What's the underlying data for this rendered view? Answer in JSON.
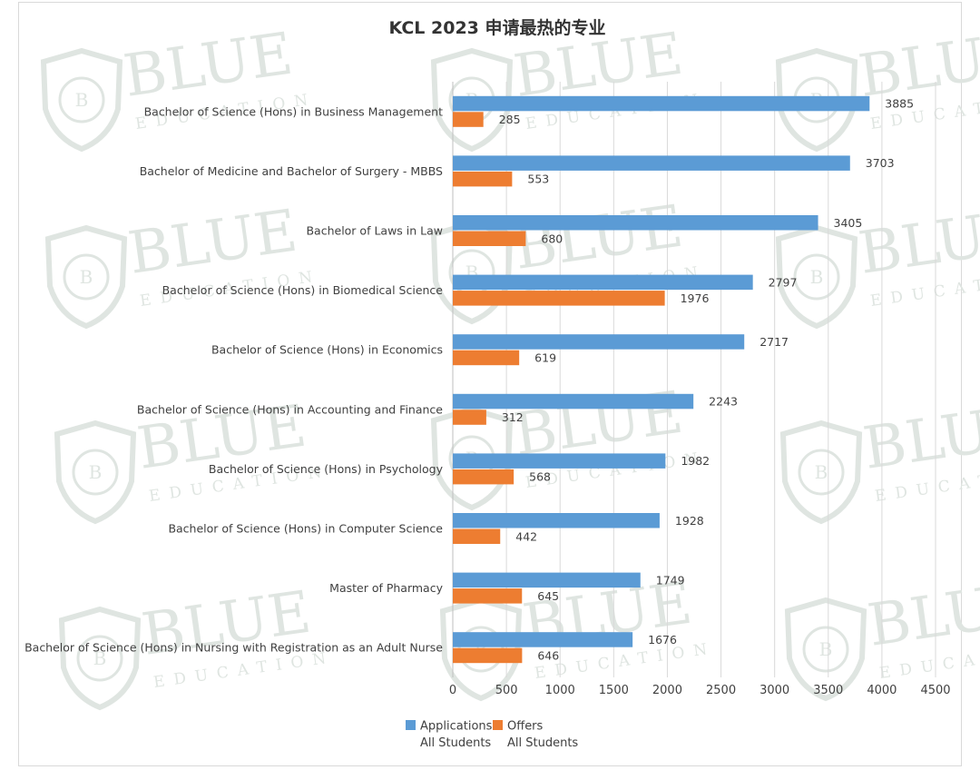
{
  "chart_data": {
    "type": "bar",
    "orientation": "horizontal",
    "title": "KCL 2023 申请最热的专业",
    "categories": [
      "Bachelor of Science (Hons) in Business Management",
      "Bachelor of Medicine and Bachelor of Surgery - MBBS",
      "Bachelor of Laws in Law",
      "Bachelor of Science (Hons) in Biomedical Science",
      "Bachelor of Science (Hons) in Economics",
      "Bachelor of Science (Hons) in Accounting and Finance",
      "Bachelor of Science (Hons) in Psychology",
      "Bachelor of Science (Hons) in Computer Science",
      "Master of Pharmacy",
      "Bachelor of Science (Hons) in Nursing with Registration as an Adult Nurse"
    ],
    "series": [
      {
        "name": "Applications",
        "name_line2": "All Students",
        "color": "#5b9bd5",
        "values": [
          3885,
          3703,
          3405,
          2797,
          2717,
          2243,
          1982,
          1928,
          1749,
          1676
        ]
      },
      {
        "name": "Offers",
        "name_line2": "All Students",
        "color": "#ed7d31",
        "values": [
          285,
          553,
          680,
          1976,
          619,
          312,
          568,
          442,
          645,
          646
        ]
      }
    ],
    "xlim": [
      0,
      4500
    ],
    "xticks": [
      0,
      500,
      1000,
      1500,
      2000,
      2500,
      3000,
      3500,
      4000,
      4500
    ],
    "grid": "vertical",
    "legend_position": "bottom",
    "data_labels": true
  },
  "watermark": {
    "main": "BLUE",
    "sub": "EDUCATION",
    "emblem_letter": "B"
  }
}
